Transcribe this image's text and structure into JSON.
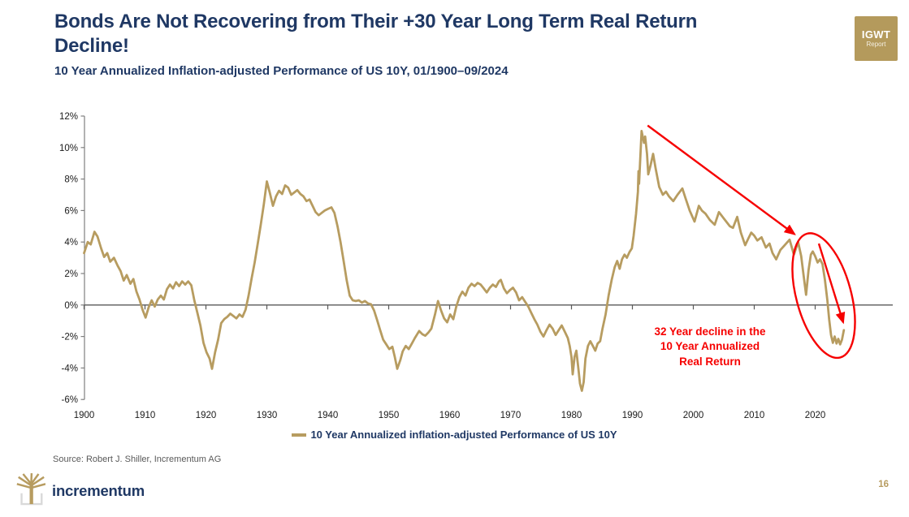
{
  "header": {
    "title_line1": "Bonds Are Not Recovering from Their +30 Year Long Term Real Return",
    "title_line2": "Decline!",
    "subtitle": "10 Year Annualized Inflation-adjusted Performance of US 10Y, 01/1900–09/2024",
    "badge": {
      "title": "IGWT",
      "subtitle": "Report",
      "bg_color": "#b49a5c"
    }
  },
  "chart_data": {
    "type": "line",
    "title": "",
    "xlabel": "",
    "ylabel": "",
    "xlim": [
      1900,
      2025.5
    ],
    "ylim": [
      -6,
      12
    ],
    "grid": false,
    "legend_position": "bottom-center",
    "axis_color": "#595959",
    "x_ticks": [
      1900,
      1910,
      1920,
      1930,
      1940,
      1950,
      1960,
      1970,
      1980,
      1990,
      2000,
      2010,
      2020
    ],
    "y_ticks": [
      {
        "value": 12,
        "label": "12%"
      },
      {
        "value": 10,
        "label": "10%"
      },
      {
        "value": 8,
        "label": "8%"
      },
      {
        "value": 6,
        "label": "6%"
      },
      {
        "value": 4,
        "label": "4%"
      },
      {
        "value": 2,
        "label": "2%"
      },
      {
        "value": 0,
        "label": "0%"
      },
      {
        "value": -2,
        "label": "-2%"
      },
      {
        "value": -4,
        "label": "-4%"
      },
      {
        "value": -6,
        "label": "-6%"
      }
    ],
    "series": [
      {
        "name": "10 Year Annualized inflation-adjusted Performance of US 10Y",
        "color": "#b79c60",
        "points": [
          [
            1900.0,
            3.3
          ],
          [
            1900.6,
            4.0
          ],
          [
            1901.1,
            3.85
          ],
          [
            1901.7,
            4.65
          ],
          [
            1902.2,
            4.35
          ],
          [
            1902.8,
            3.6
          ],
          [
            1903.3,
            3.05
          ],
          [
            1903.8,
            3.3
          ],
          [
            1904.3,
            2.75
          ],
          [
            1904.9,
            3.0
          ],
          [
            1905.5,
            2.5
          ],
          [
            1906.0,
            2.15
          ],
          [
            1906.5,
            1.55
          ],
          [
            1907.0,
            1.9
          ],
          [
            1907.6,
            1.35
          ],
          [
            1908.1,
            1.65
          ],
          [
            1908.6,
            0.85
          ],
          [
            1909.1,
            0.35
          ],
          [
            1909.6,
            -0.3
          ],
          [
            1910.1,
            -0.8
          ],
          [
            1910.6,
            -0.15
          ],
          [
            1911.1,
            0.3
          ],
          [
            1911.6,
            -0.1
          ],
          [
            1912.1,
            0.35
          ],
          [
            1912.6,
            0.6
          ],
          [
            1913.1,
            0.35
          ],
          [
            1913.6,
            1.0
          ],
          [
            1914.1,
            1.3
          ],
          [
            1914.6,
            1.05
          ],
          [
            1915.1,
            1.45
          ],
          [
            1915.6,
            1.2
          ],
          [
            1916.1,
            1.5
          ],
          [
            1916.6,
            1.3
          ],
          [
            1917.1,
            1.5
          ],
          [
            1917.6,
            1.25
          ],
          [
            1918.1,
            0.3
          ],
          [
            1918.6,
            -0.5
          ],
          [
            1919.1,
            -1.3
          ],
          [
            1919.6,
            -2.4
          ],
          [
            1920.1,
            -3.0
          ],
          [
            1920.6,
            -3.4
          ],
          [
            1921.0,
            -4.05
          ],
          [
            1921.5,
            -3.0
          ],
          [
            1922.0,
            -2.2
          ],
          [
            1922.5,
            -1.15
          ],
          [
            1923.0,
            -0.9
          ],
          [
            1923.5,
            -0.75
          ],
          [
            1924.0,
            -0.55
          ],
          [
            1924.5,
            -0.7
          ],
          [
            1925.0,
            -0.85
          ],
          [
            1925.5,
            -0.6
          ],
          [
            1926.0,
            -0.75
          ],
          [
            1926.5,
            -0.3
          ],
          [
            1927.0,
            0.6
          ],
          [
            1927.5,
            1.7
          ],
          [
            1928.0,
            2.7
          ],
          [
            1928.5,
            3.9
          ],
          [
            1929.0,
            5.1
          ],
          [
            1929.5,
            6.4
          ],
          [
            1930.0,
            7.85
          ],
          [
            1930.5,
            7.1
          ],
          [
            1931.0,
            6.3
          ],
          [
            1931.5,
            6.9
          ],
          [
            1932.0,
            7.25
          ],
          [
            1932.5,
            7.05
          ],
          [
            1933.0,
            7.6
          ],
          [
            1933.5,
            7.45
          ],
          [
            1934.0,
            7.0
          ],
          [
            1934.5,
            7.15
          ],
          [
            1935.0,
            7.3
          ],
          [
            1935.5,
            7.05
          ],
          [
            1936.0,
            6.9
          ],
          [
            1936.5,
            6.6
          ],
          [
            1937.0,
            6.7
          ],
          [
            1937.5,
            6.3
          ],
          [
            1938.0,
            5.9
          ],
          [
            1938.5,
            5.7
          ],
          [
            1939.0,
            5.85
          ],
          [
            1939.5,
            6.0
          ],
          [
            1940.0,
            6.1
          ],
          [
            1940.6,
            6.2
          ],
          [
            1941.1,
            5.85
          ],
          [
            1941.6,
            5.0
          ],
          [
            1942.1,
            4.0
          ],
          [
            1942.6,
            2.8
          ],
          [
            1943.1,
            1.6
          ],
          [
            1943.6,
            0.6
          ],
          [
            1944.1,
            0.3
          ],
          [
            1944.6,
            0.25
          ],
          [
            1945.1,
            0.3
          ],
          [
            1945.6,
            0.15
          ],
          [
            1946.1,
            0.25
          ],
          [
            1946.6,
            0.1
          ],
          [
            1947.1,
            0.05
          ],
          [
            1947.6,
            -0.35
          ],
          [
            1948.1,
            -0.95
          ],
          [
            1948.6,
            -1.6
          ],
          [
            1949.1,
            -2.2
          ],
          [
            1949.6,
            -2.5
          ],
          [
            1950.1,
            -2.8
          ],
          [
            1950.6,
            -2.65
          ],
          [
            1951.0,
            -3.3
          ],
          [
            1951.4,
            -4.05
          ],
          [
            1951.9,
            -3.5
          ],
          [
            1952.3,
            -2.95
          ],
          [
            1952.8,
            -2.6
          ],
          [
            1953.3,
            -2.8
          ],
          [
            1953.8,
            -2.45
          ],
          [
            1954.3,
            -2.1
          ],
          [
            1955.0,
            -1.65
          ],
          [
            1955.5,
            -1.85
          ],
          [
            1956.0,
            -1.95
          ],
          [
            1956.5,
            -1.75
          ],
          [
            1957.0,
            -1.5
          ],
          [
            1957.6,
            -0.6
          ],
          [
            1958.1,
            0.25
          ],
          [
            1958.6,
            -0.35
          ],
          [
            1959.1,
            -0.85
          ],
          [
            1959.6,
            -1.1
          ],
          [
            1960.1,
            -0.6
          ],
          [
            1960.6,
            -0.9
          ],
          [
            1961.1,
            -0.1
          ],
          [
            1961.6,
            0.5
          ],
          [
            1962.1,
            0.85
          ],
          [
            1962.6,
            0.6
          ],
          [
            1963.1,
            1.1
          ],
          [
            1963.6,
            1.35
          ],
          [
            1964.1,
            1.2
          ],
          [
            1964.6,
            1.4
          ],
          [
            1965.1,
            1.3
          ],
          [
            1965.6,
            1.05
          ],
          [
            1966.1,
            0.8
          ],
          [
            1966.6,
            1.1
          ],
          [
            1967.1,
            1.3
          ],
          [
            1967.6,
            1.15
          ],
          [
            1968.1,
            1.5
          ],
          [
            1968.4,
            1.6
          ],
          [
            1968.9,
            1.05
          ],
          [
            1969.4,
            0.75
          ],
          [
            1969.9,
            0.95
          ],
          [
            1970.4,
            1.1
          ],
          [
            1970.9,
            0.8
          ],
          [
            1971.4,
            0.3
          ],
          [
            1971.9,
            0.5
          ],
          [
            1972.4,
            0.2
          ],
          [
            1972.9,
            -0.1
          ],
          [
            1973.4,
            -0.5
          ],
          [
            1973.9,
            -0.9
          ],
          [
            1974.4,
            -1.25
          ],
          [
            1974.9,
            -1.7
          ],
          [
            1975.4,
            -2.0
          ],
          [
            1975.9,
            -1.6
          ],
          [
            1976.4,
            -1.25
          ],
          [
            1976.9,
            -1.5
          ],
          [
            1977.4,
            -1.9
          ],
          [
            1977.9,
            -1.6
          ],
          [
            1978.4,
            -1.3
          ],
          [
            1978.9,
            -1.7
          ],
          [
            1979.4,
            -2.1
          ],
          [
            1979.7,
            -2.6
          ],
          [
            1980.0,
            -3.3
          ],
          [
            1980.2,
            -4.4
          ],
          [
            1980.5,
            -3.3
          ],
          [
            1980.8,
            -2.9
          ],
          [
            1981.1,
            -3.9
          ],
          [
            1981.4,
            -5.0
          ],
          [
            1981.7,
            -5.45
          ],
          [
            1982.0,
            -4.9
          ],
          [
            1982.3,
            -3.4
          ],
          [
            1982.7,
            -2.6
          ],
          [
            1983.1,
            -2.3
          ],
          [
            1983.5,
            -2.6
          ],
          [
            1983.9,
            -2.9
          ],
          [
            1984.3,
            -2.45
          ],
          [
            1984.7,
            -2.3
          ],
          [
            1985.1,
            -1.5
          ],
          [
            1985.6,
            -0.6
          ],
          [
            1986.1,
            0.6
          ],
          [
            1986.6,
            1.6
          ],
          [
            1987.1,
            2.4
          ],
          [
            1987.5,
            2.8
          ],
          [
            1987.9,
            2.3
          ],
          [
            1988.3,
            2.9
          ],
          [
            1988.7,
            3.2
          ],
          [
            1989.1,
            3.0
          ],
          [
            1989.5,
            3.35
          ],
          [
            1989.9,
            3.6
          ],
          [
            1990.2,
            4.4
          ],
          [
            1990.6,
            5.8
          ],
          [
            1990.9,
            7.2
          ],
          [
            1991.0,
            8.5
          ],
          [
            1991.1,
            7.7
          ],
          [
            1991.5,
            11.05
          ],
          [
            1991.9,
            10.3
          ],
          [
            1992.1,
            10.7
          ],
          [
            1992.4,
            9.6
          ],
          [
            1992.6,
            8.3
          ],
          [
            1993.0,
            8.9
          ],
          [
            1993.4,
            9.6
          ],
          [
            1993.8,
            8.7
          ],
          [
            1994.4,
            7.5
          ],
          [
            1995.0,
            7.0
          ],
          [
            1995.5,
            7.2
          ],
          [
            1996.0,
            6.9
          ],
          [
            1996.7,
            6.6
          ],
          [
            1997.4,
            7.0
          ],
          [
            1998.2,
            7.4
          ],
          [
            1998.7,
            6.8
          ],
          [
            1999.4,
            6.0
          ],
          [
            2000.2,
            5.3
          ],
          [
            2000.9,
            6.3
          ],
          [
            2001.4,
            6.0
          ],
          [
            2002.0,
            5.8
          ],
          [
            2002.7,
            5.4
          ],
          [
            2003.5,
            5.1
          ],
          [
            2004.2,
            5.9
          ],
          [
            2004.8,
            5.6
          ],
          [
            2005.4,
            5.3
          ],
          [
            2006.0,
            5.0
          ],
          [
            2006.5,
            4.9
          ],
          [
            2007.2,
            5.6
          ],
          [
            2007.8,
            4.6
          ],
          [
            2008.5,
            3.8
          ],
          [
            2009.0,
            4.2
          ],
          [
            2009.5,
            4.6
          ],
          [
            2010.0,
            4.4
          ],
          [
            2010.5,
            4.1
          ],
          [
            2011.2,
            4.3
          ],
          [
            2011.9,
            3.65
          ],
          [
            2012.5,
            3.9
          ],
          [
            2013.0,
            3.3
          ],
          [
            2013.6,
            2.9
          ],
          [
            2014.3,
            3.5
          ],
          [
            2015.0,
            3.8
          ],
          [
            2015.8,
            4.15
          ],
          [
            2016.5,
            3.2
          ],
          [
            2017.2,
            4.0
          ],
          [
            2017.7,
            3.1
          ],
          [
            2018.1,
            1.9
          ],
          [
            2018.5,
            0.65
          ],
          [
            2018.9,
            2.2
          ],
          [
            2019.3,
            3.2
          ],
          [
            2019.6,
            3.4
          ],
          [
            2020.0,
            3.1
          ],
          [
            2020.4,
            2.7
          ],
          [
            2020.8,
            2.9
          ],
          [
            2021.2,
            2.6
          ],
          [
            2021.6,
            1.6
          ],
          [
            2022.0,
            0.3
          ],
          [
            2022.3,
            -0.9
          ],
          [
            2022.6,
            -1.9
          ],
          [
            2022.9,
            -2.4
          ],
          [
            2023.2,
            -2.0
          ],
          [
            2023.5,
            -2.45
          ],
          [
            2023.8,
            -2.15
          ],
          [
            2024.1,
            -2.5
          ],
          [
            2024.4,
            -2.2
          ],
          [
            2024.7,
            -1.6
          ]
        ]
      }
    ],
    "annotation": {
      "lines": [
        "32 Year decline in the",
        "10 Year Annualized",
        "Real Return"
      ],
      "color": "#f60000",
      "arrows": [
        {
          "from": [
            1992.5,
            11.4
          ],
          "to": [
            2016.6,
            4.5
          ]
        },
        {
          "from": [
            2020.6,
            3.9
          ],
          "to": [
            2024.6,
            -1.1
          ]
        }
      ],
      "ellipse": {
        "center": [
          2021.4,
          0.6
        ],
        "rx_years": 4.5,
        "ry_units": 4.07,
        "rotate_deg": -15
      }
    }
  },
  "footer": {
    "source": "Source: Robert J. Shiller, Incrementum AG",
    "brand": "incrementum",
    "page_number": "16"
  }
}
